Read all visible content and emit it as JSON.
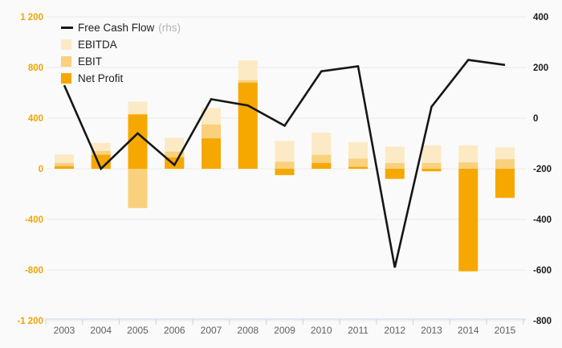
{
  "chart_data": {
    "type": "combo_bar_line",
    "categories": [
      "2003",
      "2004",
      "2005",
      "2006",
      "2007",
      "2008",
      "2009",
      "2010",
      "2011",
      "2012",
      "2013",
      "2014",
      "2015"
    ],
    "bar_series": [
      {
        "name": "EBITDA",
        "color": "#FBEAC4",
        "values": [
          115,
          205,
          530,
          245,
          480,
          855,
          220,
          285,
          210,
          175,
          185,
          185,
          170
        ]
      },
      {
        "name": "EBIT",
        "color": "#F9D07C",
        "values": [
          45,
          140,
          -310,
          135,
          350,
          700,
          55,
          110,
          80,
          45,
          45,
          50,
          75
        ]
      },
      {
        "name": "Net Profit",
        "color": "#F6A800",
        "values": [
          20,
          110,
          430,
          90,
          240,
          680,
          -50,
          45,
          15,
          -80,
          -20,
          -810,
          -230
        ]
      }
    ],
    "line_series": {
      "name": "Free Cash Flow",
      "suffix": "(rhs)",
      "axis": "right",
      "color": "#161616",
      "values": [
        130,
        -200,
        -60,
        -185,
        75,
        50,
        -30,
        185,
        205,
        -590,
        45,
        230,
        210
      ]
    },
    "left_axis": {
      "range": [
        -1200,
        1200
      ],
      "ticks": [
        1200,
        800,
        400,
        0,
        -400,
        -800,
        -1200
      ],
      "labels": [
        "1 200",
        "800",
        "400",
        "0",
        "-400",
        "-800",
        "-1 200"
      ],
      "color": "#F0A400"
    },
    "right_axis": {
      "range": [
        -800,
        400
      ],
      "ticks": [
        400,
        200,
        0,
        -200,
        -400,
        -600,
        -800
      ],
      "labels": [
        "400",
        "200",
        "0",
        "-200",
        "-400",
        "-600",
        "-800"
      ],
      "color": "#1a1a1a"
    },
    "grid": {
      "on": true,
      "color": "#e9e9e9"
    },
    "x_axis": {
      "line_color": "#c9d2e4",
      "label_color": "#5f5f5f"
    },
    "legend_position": "top-left"
  }
}
